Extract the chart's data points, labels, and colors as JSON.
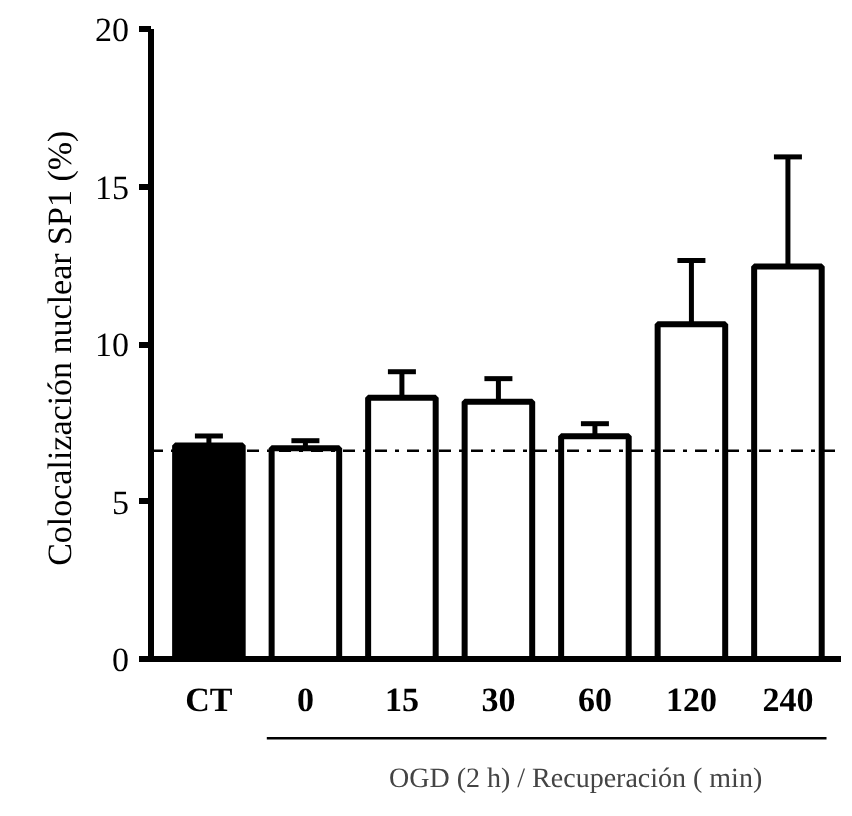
{
  "chart_data": {
    "type": "bar",
    "ylabel": "Colocalización nuclear SP1  (%)",
    "categories": [
      "CT",
      "0",
      "15",
      "30",
      "60",
      "120",
      "240"
    ],
    "values": [
      6.78,
      6.69,
      8.29,
      8.17,
      7.07,
      10.63,
      12.46
    ],
    "errors": [
      0.3,
      0.24,
      0.83,
      0.73,
      0.4,
      2.02,
      3.48
    ],
    "colors": [
      "#000000",
      "#ffffff",
      "#ffffff",
      "#ffffff",
      "#ffffff",
      "#ffffff",
      "#ffffff"
    ],
    "ylim": [
      0,
      20
    ],
    "yticks": [
      0,
      5,
      10,
      15,
      20
    ],
    "ref_lines": [
      {
        "axis": "y",
        "value": 6.61,
        "color": "#000000",
        "line_style": "dashdot"
      }
    ],
    "annotations": [
      "OGD (2 h) / Recuperación ( min)"
    ],
    "grid": false
  }
}
